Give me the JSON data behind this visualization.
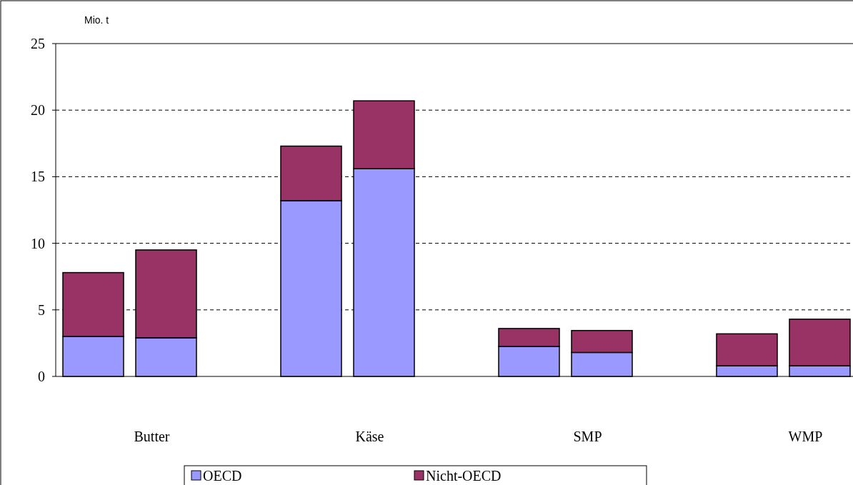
{
  "chart_data": {
    "type": "bar",
    "stacked": true,
    "ylabel": "Mio. t",
    "categories": [
      null,
      "Butter",
      null,
      "Käse",
      null,
      "SMP",
      null,
      "WMP"
    ],
    "series": [
      {
        "name": "OECD",
        "color": "#9999ff",
        "values": [
          3.0,
          2.9,
          13.2,
          15.6,
          2.25,
          1.8,
          0.8,
          0.8
        ]
      },
      {
        "name": "Nicht-OECD",
        "color": "#993366",
        "values": [
          4.8,
          6.6,
          4.1,
          5.1,
          1.35,
          1.65,
          2.4,
          3.5
        ]
      }
    ],
    "ylim": [
      0,
      25
    ],
    "yticks": [
      0,
      5,
      10,
      15,
      20,
      25
    ],
    "grid": "y",
    "legend": "bottom"
  }
}
